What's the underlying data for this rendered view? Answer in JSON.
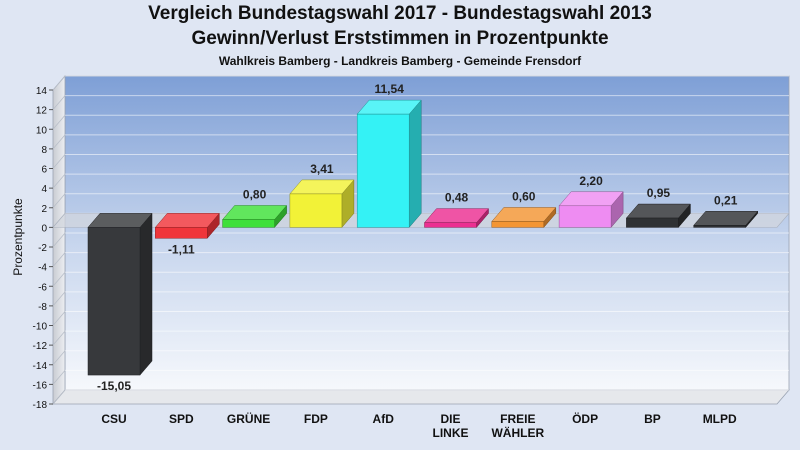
{
  "header": {
    "title_line1": "Vergleich Bundestagswahl 2017 - Bundestagswahl 2013",
    "title_line2": "Gewinn/Verlust Erststimmen in Prozentpunkte",
    "subtitle": "Wahlkreis Bamberg - Landkreis Bamberg - Gemeinde Frensdorf"
  },
  "chart_data": {
    "type": "bar",
    "title": "Vergleich Bundestagswahl 2017 - Bundestagswahl 2013 Gewinn/Verlust Erststimmen in Prozentpunkte",
    "subtitle": "Wahlkreis Bamberg - Landkreis Bamberg - Gemeinde Frensdorf",
    "xlabel": "",
    "ylabel": "Prozentpunkte",
    "ylim": [
      -18,
      14
    ],
    "yticks": [
      14,
      12,
      10,
      8,
      6,
      4,
      2,
      0,
      -2,
      -4,
      -6,
      -8,
      -10,
      -12,
      -14,
      -16,
      -18
    ],
    "grid": true,
    "legend": "none",
    "categories": [
      "CSU",
      "SPD",
      "GRÜNE",
      "FDP",
      "AfD",
      "DIE LINKE",
      "FREIE WÄHLER",
      "ÖDP",
      "BP",
      "MLPD"
    ],
    "category_lines": [
      [
        "CSU"
      ],
      [
        "SPD"
      ],
      [
        "GRÜNE"
      ],
      [
        "FDP"
      ],
      [
        "AfD"
      ],
      [
        "DIE",
        "LINKE"
      ],
      [
        "FREIE",
        "WÄHLER"
      ],
      [
        "ÖDP"
      ],
      [
        "BP"
      ],
      [
        "MLPD"
      ]
    ],
    "values": [
      -15.05,
      -1.11,
      0.8,
      3.41,
      11.54,
      0.48,
      0.6,
      2.2,
      0.95,
      0.21
    ],
    "value_labels": [
      "-15,05",
      "-1,11",
      "0,80",
      "3,41",
      "11,54",
      "0,48",
      "0,60",
      "2,20",
      "0,95",
      "0,21"
    ],
    "colors": [
      "#37393c",
      "#f0353b",
      "#3ee03a",
      "#f2f237",
      "#34f2f5",
      "#ec2f91",
      "#f39533",
      "#ee8cf2",
      "#2f3134",
      "#2f3134"
    ]
  }
}
